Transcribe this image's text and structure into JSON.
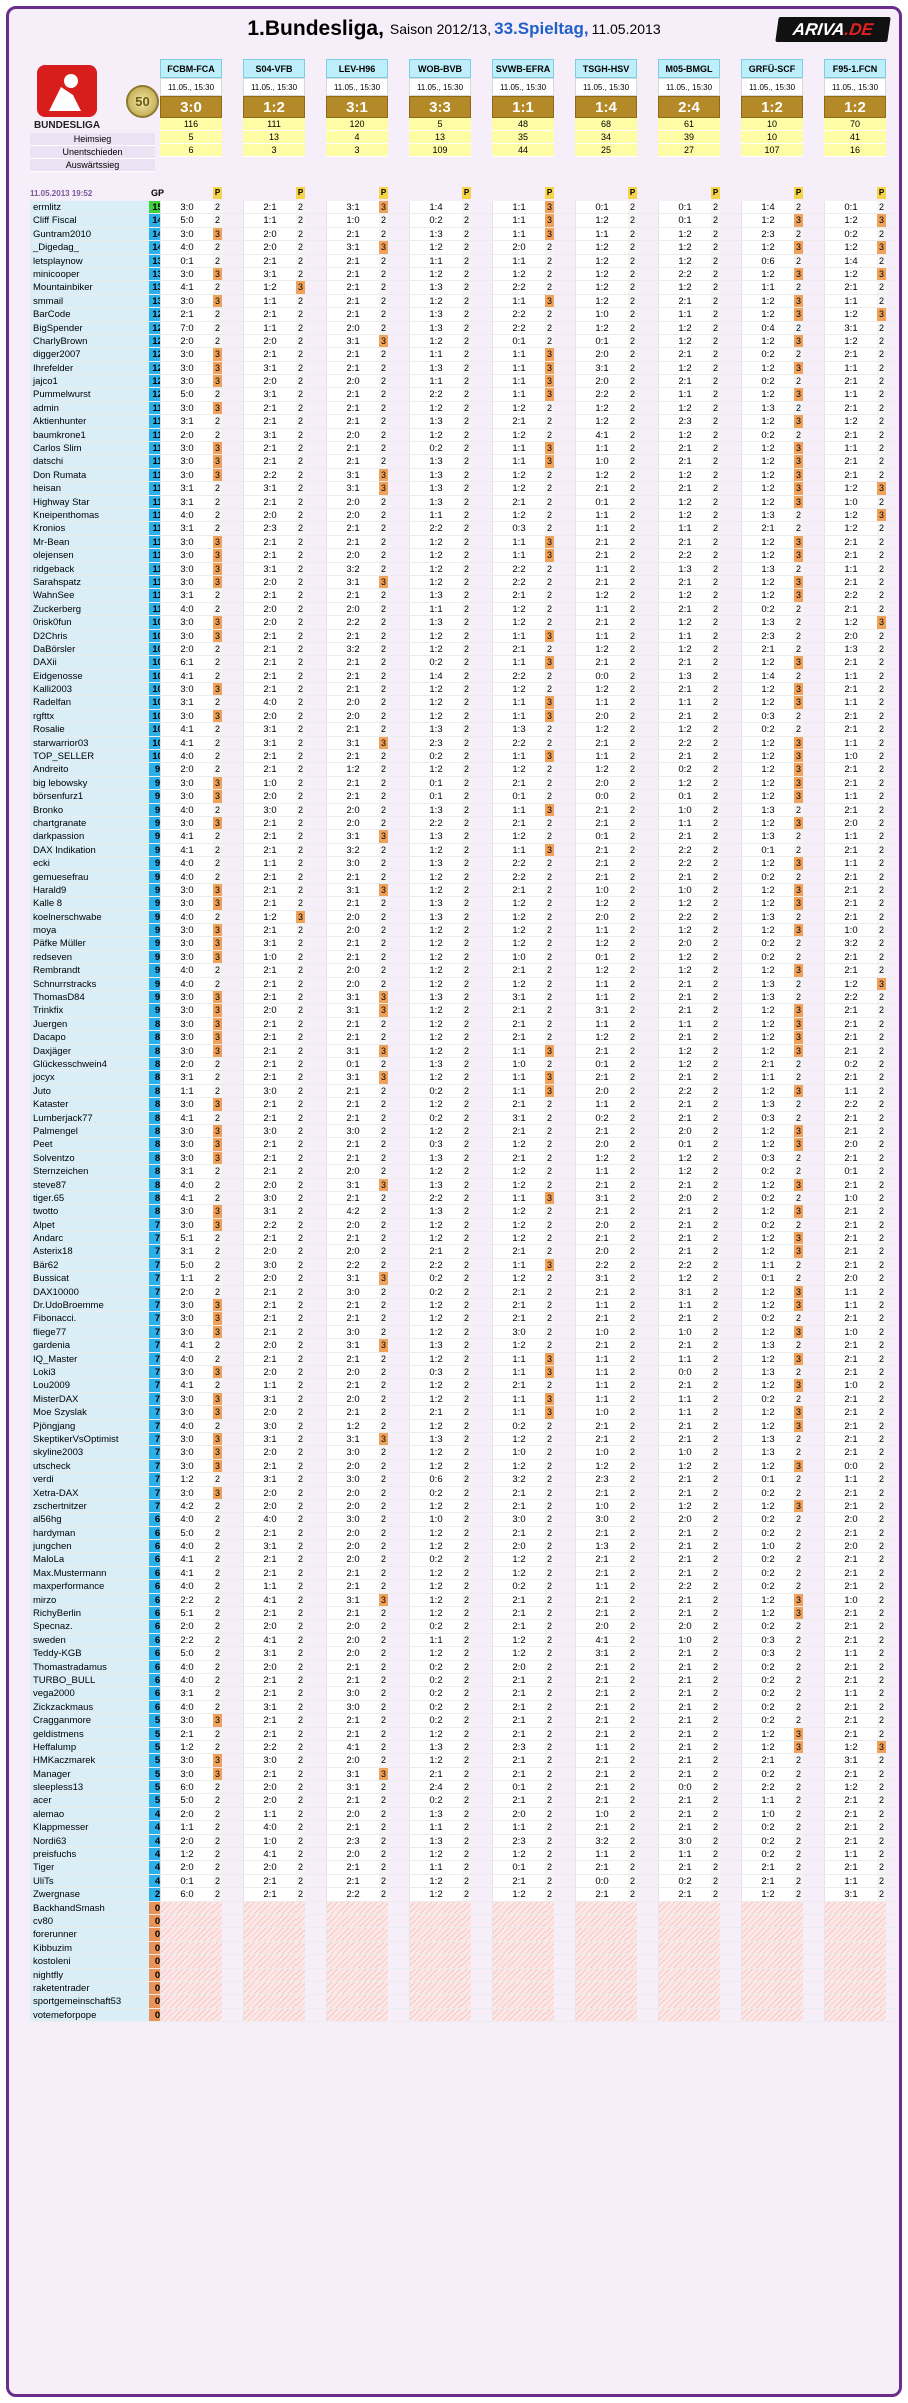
{
  "header": {
    "title": "1.Bundesliga,",
    "season": "Saison 2012/13,",
    "matchday": "33.Spieltag,",
    "date": "11.05.2013",
    "logo_text": "ARIVA",
    "logo_suffix": ".DE",
    "league_logo_label": "BUNDESLIGA",
    "badge": "50"
  },
  "matches": [
    {
      "code": "FCBM-FCA",
      "date": "11.05., 15:30",
      "result": "3:0",
      "home": "116",
      "draw": "5",
      "away": "6"
    },
    {
      "code": "S04-VFB",
      "date": "11.05., 15:30",
      "result": "1:2",
      "home": "111",
      "draw": "13",
      "away": "3"
    },
    {
      "code": "LEV-H96",
      "date": "11.05., 15:30",
      "result": "3:1",
      "home": "120",
      "draw": "4",
      "away": "3"
    },
    {
      "code": "WOB-BVB",
      "date": "11.05., 15:30",
      "result": "3:3",
      "home": "5",
      "draw": "13",
      "away": "109"
    },
    {
      "code": "SVWB-EFRA",
      "date": "11.05., 15:30",
      "result": "1:1",
      "home": "48",
      "draw": "35",
      "away": "44"
    },
    {
      "code": "TSGH-HSV",
      "date": "11.05., 15:30",
      "result": "1:4",
      "home": "68",
      "draw": "34",
      "away": "25"
    },
    {
      "code": "M05-BMGL",
      "date": "11.05., 15:30",
      "result": "2:4",
      "home": "61",
      "draw": "39",
      "away": "27"
    },
    {
      "code": "GRFÜ-SCF",
      "date": "11.05., 15:30",
      "result": "1:2",
      "home": "10",
      "draw": "10",
      "away": "107"
    },
    {
      "code": "F95-1.FCN",
      "date": "11.05., 15:30",
      "result": "1:2",
      "home": "70",
      "draw": "41",
      "away": "16"
    }
  ],
  "labels": {
    "home": "Heimsieg",
    "draw": "Unentschieden",
    "away": "Auswärtssieg",
    "updated": "11.05.2013 19:52",
    "gp": "GP",
    "p": "P"
  },
  "colors": {
    "accent": "#6a2d8c",
    "result_bg": "#b48a28",
    "gp_bg": "#2bb0ea",
    "gp_top": "#3ed23e"
  },
  "players": [
    "ermlitz|15|3:0 2|2:1 2|3:1 3|1:4 2|1:1 3|0:1 2|0:1 2|1:4 2|0:1 2",
    "Cliff Fiscal|14|5:0 2|1:1 2|1:0 2|0:2 2|1:1 3|1:2 2|0:1 2|1:2 3|1:2 3",
    "Guntram2010|14|3:0 3|2:0 2|2:1 2|1:3 2|1:1 3|1:1 2|1:2 2|2:3 2|0:2 2",
    "_Digedag_|14|4:0 2|2:0 2|3:1 3|1:2 2|2:0 2|1:2 2|1:2 2|1:2 3|1:2 3",
    "letsplaynow|13|0:1 2|2:1 2|2:1 2|1:1 2|1:1 2|1:2 2|1:2 2|0:6 2|1:4 2",
    "minicooper|13|3:0 3|3:1 2|2:1 2|1:2 2|1:2 2|1:2 2|2:2 2|1:2 3|1:2 3",
    "Mountainbiker|13|4:1 2|1:2 3|2:1 2|1:3 2|2:2 2|1:2 2|1:2 2|1:1 2|2:1 2",
    "smmail|13|3:0 3|1:1 2|2:1 2|1:2 2|1:1 3|1:2 2|2:1 2|1:2 3|1:1 2",
    "BarCode|12|2:1 2|2:1 2|2:1 2|1:3 2|2:2 2|1:0 2|1:1 2|1:2 3|1:2 3",
    "BigSpender|12|7:0 2|1:1 2|2:0 2|1:3 2|2:2 2|1:2 2|1:2 2|0:4 2|3:1 2",
    "CharlyBrown|12|2:0 2|2:0 2|3:1 3|1:2 2|0:1 2|0:1 2|1:2 2|1:2 3|1:2 2",
    "digger2007|12|3:0 3|2:1 2|2:1 2|1:1 2|1:1 3|2:0 2|2:1 2|0:2 2|2:1 2",
    "Ihrefelder|12|3:0 3|3:1 2|2:1 2|1:3 2|1:1 3|3:1 2|1:2 2|1:2 3|1:1 2",
    "jajco1|12|3:0 3|2:0 2|2:0 2|1:1 2|1:1 3|2:0 2|2:1 2|0:2 2|2:1 2",
    "Pummelwurst|12|5:0 2|3:1 2|2:1 2|2:2 2|1:1 3|2:2 2|1:1 2|1:2 3|1:1 2",
    "admin|11|3:0 3|2:1 2|2:1 2|1:2 2|1:2 2|1:2 2|1:2 2|1:3 2|2:1 2",
    "Aktienhunter|11|3:1 2|2:1 2|2:1 2|1:3 2|2:1 2|1:2 2|2:3 2|1:2 3|1:2 2",
    "baumkrone1|11|2:0 2|3:1 2|2:0 2|1:2 2|1:2 2|4:1 2|1:2 2|0:2 2|2:1 2",
    "Carlos Slim|11|3:0 3|2:1 2|2:1 2|0:2 2|1:1 3|1:1 2|2:1 2|1:2 3|1:1 2",
    "datschi|11|3:0 3|2:1 2|2:1 2|1:3 2|1:1 3|1:0 2|2:1 2|1:2 3|2:1 2",
    "Don Rumata|11|3:0 3|2:2 2|3:1 3|1:3 2|1:2 2|1:2 2|1:2 2|1:2 3|2:1 2",
    "heisan|11|3:1 2|3:1 2|3:1 3|1:3 2|1:2 2|2:1 2|2:1 2|1:2 3|1:2 3",
    "Highway Star|11|3:1 2|2:1 2|2:0 2|1:3 2|2:1 2|0:1 2|1:2 2|1:2 3|1:0 2",
    "Kneipenthomas|11|4:0 2|2:0 2|2:0 2|1:1 2|1:2 2|1:1 2|1:2 2|1:3 2|1:2 3",
    "Kronios|11|3:1 2|2:3 2|2:1 2|2:2 2|0:3 2|1:1 2|1:1 2|2:1 2|1:2 2",
    "Mr-Bean|11|3:0 3|2:1 2|2:1 2|1:2 2|1:1 3|2:1 2|2:1 2|1:2 3|2:1 2",
    "olejensen|11|3:0 3|2:1 2|2:0 2|1:2 2|1:1 3|2:1 2|2:2 2|1:2 3|2:1 2",
    "ridgeback|11|3:0 3|3:1 2|3:2 2|1:2 2|2:2 2|1:1 2|1:3 2|1:3 2|1:1 2",
    "Sarahspatz|11|3:0 3|2:0 2|3:1 3|1:2 2|2:2 2|2:1 2|2:1 2|1:2 3|2:1 2",
    "WahnSee|11|3:1 2|2:1 2|2:1 2|1:3 2|2:1 2|1:2 2|1:2 2|1:2 3|2:2 2",
    "Zuckerberg|11|4:0 2|2:0 2|2:0 2|1:1 2|1:2 2|1:1 2|2:1 2|0:2 2|2:1 2",
    "0risk0fun|10|3:0 3|2:0 2|2:2 2|1:3 2|1:2 2|2:1 2|1:2 2|1:3 2|1:2 3",
    "D2Chris|10|3:0 3|2:1 2|2:1 2|1:2 2|1:1 3|1:1 2|1:1 2|2:3 2|2:0 2",
    "DaBörsler|10|2:0 2|2:1 2|3:2 2|1:2 2|2:1 2|1:2 2|1:2 2|2:1 2|1:3 2",
    "DAXii|10|6:1 2|2:1 2|2:1 2|0:2 2|1:1 3|2:1 2|2:1 2|1:2 3|2:1 2",
    "Eidgenosse|10|4:1 2|2:1 2|2:1 2|1:4 2|2:2 2|0:0 2|1:3 2|1:4 2|1:1 2",
    "Kalli2003|10|3:0 3|2:1 2|2:1 2|1:2 2|1:2 2|1:2 2|2:1 2|1:2 3|2:1 2",
    "Radelfan|10|3:1 2|4:0 2|2:0 2|1:2 2|1:1 3|1:1 2|1:1 2|1:2 3|1:1 2",
    "rgfttx|10|3:0 3|2:0 2|2:0 2|1:2 2|1:1 3|2:0 2|2:1 2|0:3 2|2:1 2",
    "Rosalie|10|4:1 2|3:1 2|2:1 2|1:3 2|1:3 2|1:2 2|1:2 2|0:2 2|2:1 2",
    "starwarrior03|10|4:1 2|3:1 2|3:1 3|2:3 2|2:2 2|2:1 2|2:2 2|1:2 3|1:1 2",
    "TOP_SELLER|10|4:0 2|2:1 2|2:1 2|0:2 2|1:1 3|1:1 2|2:1 2|1:2 3|1:0 2",
    "Andreito|9|2:0 2|2:1 2|1:2 2|1:2 2|1:2 2|1:2 2|0:2 2|1:2 3|2:1 2",
    "big lebowsky|9|3:0 3|1:0 2|2:1 2|0:1 2|2:1 2|2:0 2|1:2 2|1:2 3|2:1 2",
    "börsenfurz1|9|3:0 3|2:0 2|2:1 2|0:1 2|0:1 2|0:0 2|0:1 2|1:2 3|1:1 2",
    "Bronko|9|4:0 2|3:0 2|2:0 2|1:3 2|1:1 3|2:1 2|1:0 2|1:3 2|2:1 2",
    "chartgranate|9|3:0 3|2:1 2|2:0 2|2:2 2|2:1 2|2:1 2|1:1 2|1:2 3|2:0 2",
    "darkpassion|9|4:1 2|2:1 2|3:1 3|1:3 2|1:2 2|0:1 2|2:1 2|1:3 2|1:1 2",
    "DAX Indikation|9|4:1 2|2:1 2|3:2 2|1:2 2|1:1 3|2:1 2|2:2 2|0:1 2|2:1 2",
    "ecki|9|4:0 2|1:1 2|3:0 2|1:3 2|2:2 2|2:1 2|2:2 2|1:2 3|1:1 2",
    "gemuesefrau|9|4:0 2|2:1 2|2:1 2|1:2 2|2:2 2|2:1 2|2:1 2|0:2 2|2:1 2",
    "Harald9|9|3:0 3|2:1 2|3:1 3|1:2 2|2:1 2|1:0 2|1:0 2|1:2 3|2:1 2",
    "Kalle 8|9|3:0 3|2:1 2|2:1 2|1:3 2|1:2 2|1:2 2|1:2 2|1:2 3|2:1 2",
    "koelnerschwabe|9|4:0 2|1:2 3|2:0 2|1:3 2|1:2 2|2:0 2|2:2 2|1:3 2|2:1 2",
    "moya|9|3:0 3|2:1 2|2:0 2|1:2 2|1:2 2|1:1 2|1:2 2|1:2 3|1:0 2",
    "Päfke Müller|9|3:0 3|3:1 2|2:1 2|1:2 2|1:2 2|1:2 2|2:0 2|0:2 2|3:2 2",
    "redseven|9|3:0 3|1:0 2|2:1 2|1:2 2|1:0 2|0:1 2|1:2 2|0:2 2|2:1 2",
    "Rembrandt|9|4:0 2|2:1 2|2:0 2|1:2 2|2:1 2|1:2 2|1:2 2|1:2 3|2:1 2",
    "Schnurrstracks|9|4:0 2|2:1 2|2:0 2|1:2 2|1:2 2|1:1 2|2:1 2|1:3 2|1:2 3",
    "ThomasD84|9|3:0 3|2:1 2|3:1 3|1:3 2|3:1 2|1:1 2|2:1 2|1:3 2|2:2 2",
    "Trinkfix|9|3:0 3|2:0 2|3:1 3|1:2 2|2:1 2|3:1 2|2:1 2|1:2 3|2:1 2",
    "Juergen|8|3:0 3|2:1 2|2:1 2|1:2 2|2:1 2|1:1 2|1:1 2|1:2 3|2:1 2",
    "Dacapo|8|3:0 3|2:1 2|2:1 2|1:2 2|2:1 2|1:2 2|2:1 2|1:2 3|2:1 2",
    "Daxjäger|8|3:0 3|2:1 2|3:1 3|1:2 2|1:1 3|2:1 2|1:2 2|1:2 3|2:1 2",
    "Glückesschwein4|8|2:0 2|2:1 2|0:1 2|1:3 2|1:0 2|0:1 2|1:2 2|2:1 2|0:2 2",
    "jocyx|8|3:1 2|2:1 2|3:1 3|1:2 2|1:1 3|2:1 2|2:1 2|1:1 2|2:1 2",
    "Juto|8|1:1 2|3:0 2|2:1 2|0:2 2|1:1 3|2:0 2|2:2 2|1:2 3|1:1 2",
    "Kataster|8|3:0 3|2:1 2|2:1 2|1:2 2|2:1 2|1:1 2|2:1 2|1:3 2|2:2 2",
    "Lumberjack77|8|4:1 2|2:1 2|2:1 2|0:2 2|3:1 2|0:2 2|2:1 2|0:3 2|2:1 2",
    "Palmengel|8|3:0 3|3:0 2|3:0 2|1:2 2|2:1 2|2:1 2|2:0 2|1:2 3|2:1 2",
    "Peet|8|3:0 3|2:1 2|2:1 2|0:3 2|1:2 2|2:0 2|0:1 2|1:2 3|2:0 2",
    "Solventzo|8|3:0 3|2:1 2|2:1 2|1:3 2|2:1 2|1:2 2|1:2 2|0:3 2|2:1 2",
    "Sternzeichen|8|3:1 2|2:1 2|2:0 2|1:2 2|1:2 2|1:1 2|1:2 2|0:2 2|0:1 2",
    "steve87|8|4:0 2|2:0 2|3:1 3|1:3 2|1:2 2|2:1 2|2:1 2|1:2 3|2:1 2",
    "tiger.65|8|4:1 2|3:0 2|2:1 2|2:2 2|1:1 3|3:1 2|2:0 2|0:2 2|1:0 2",
    "twotto|8|3:0 3|3:1 2|4:2 2|1:3 2|1:2 2|2:1 2|2:1 2|1:2 3|2:1 2",
    "Alpet|7|3:0 3|2:2 2|2:0 2|1:2 2|1:2 2|2:0 2|2:1 2|0:2 2|2:1 2",
    "Andarc|7|5:1 2|2:1 2|2:1 2|1:2 2|1:2 2|2:1 2|2:1 2|1:2 3|2:1 2",
    "Asterix18|7|3:1 2|2:0 2|2:0 2|2:1 2|2:1 2|2:0 2|2:1 2|1:2 3|2:1 2",
    "Bär62|7|5:0 2|3:0 2|2:2 2|2:2 2|1:1 3|2:2 2|2:2 2|1:1 2|2:1 2",
    "Bussicat|7|1:1 2|2:0 2|3:1 3|0:2 2|1:2 2|3:1 2|1:2 2|0:1 2|2:0 2",
    "DAX10000|7|2:0 2|2:1 2|3:0 2|0:2 2|2:1 2|2:1 2|3:1 2|1:2 3|1:1 2",
    "Dr.UdoBroemme|7|3:0 3|2:1 2|2:1 2|1:2 2|2:1 2|1:1 2|1:1 2|1:2 3|1:1 2",
    "Fibonacci.|7|3:0 3|2:1 2|2:1 2|1:2 2|2:1 2|2:1 2|2:1 2|0:2 2|2:1 2",
    "fliege77|7|3:0 3|2:1 2|3:0 2|1:2 2|3:0 2|1:0 2|1:0 2|1:2 3|1:0 2",
    "gardenia|7|4:1 2|2:0 2|3:1 3|1:3 2|1:2 2|2:1 2|2:1 2|1:3 2|2:1 2",
    "IQ_Master|7|4:0 2|2:1 2|2:1 2|1:2 2|1:1 3|1:1 2|1:1 2|1:2 3|2:1 2",
    "Loki3|7|3:0 3|2:0 2|2:0 2|0:3 2|1:1 3|1:1 2|0:0 2|1:3 2|2:1 2",
    "Lou2009|7|4:1 2|1:1 2|2:1 2|1:2 2|2:1 2|1:1 2|2:1 2|1:2 3|1:0 2",
    "MisterDAX|7|3:0 3|3:1 2|2:0 2|1:2 2|1:1 3|1:1 2|1:1 2|0:2 2|2:1 2",
    "Moe Szyslak|7|3:0 3|2:0 2|2:1 2|2:1 2|1:1 3|1:0 2|1:1 2|1:2 3|2:1 2",
    "Pjöngjang|7|4:0 2|3:0 2|1:2 2|1:2 2|0:2 2|2:1 2|2:1 2|1:2 3|2:1 2",
    "SkeptikerVsOptimist|7|3:0 3|3:1 2|3:1 3|1:3 2|1:2 2|2:1 2|2:1 2|1:3 2|2:1 2",
    "skyline2003|7|3:0 3|2:0 2|3:0 2|1:2 2|1:0 2|1:0 2|1:0 2|1:3 2|2:1 2",
    "utscheck|7|3:0 3|2:1 2|2:0 2|1:2 2|1:2 2|1:2 2|1:2 2|1:2 3|0:0 2",
    "verdi|7|1:2 2|3:1 2|3:0 2|0:6 2|3:2 2|2:3 2|2:1 2|0:1 2|1:1 2",
    "Xetra-DAX|7|3:0 3|2:0 2|2:0 2|0:2 2|2:1 2|2:1 2|2:1 2|0:2 2|2:1 2",
    "zschertnitzer|7|4:2 2|2:0 2|2:0 2|1:2 2|2:1 2|1:0 2|1:2 2|1:2 3|2:1 2",
    "al56hg|6|4:0 2|4:0 2|3:0 2|1:0 2|3:0 2|3:0 2|2:0 2|0:2 2|2:0 2",
    "hardyman|6|5:0 2|2:1 2|2:0 2|1:2 2|2:1 2|2:1 2|2:1 2|0:2 2|2:1 2",
    "jungchen|6|4:0 2|3:1 2|2:0 2|1:2 2|2:0 2|1:3 2|2:1 2|1:0 2|2:0 2",
    "MaloLa|6|4:1 2|2:1 2|2:0 2|0:2 2|1:2 2|2:1 2|2:1 2|0:2 2|2:1 2",
    "Max.Mustermann|6|4:1 2|2:1 2|2:1 2|1:2 2|1:2 2|2:1 2|2:1 2|0:2 2|2:1 2",
    "maxperformance|6|4:0 2|1:1 2|2:1 2|1:2 2|0:2 2|1:1 2|2:2 2|0:2 2|2:1 2",
    "mirzo|6|2:2 2|4:1 2|3:1 3|1:2 2|2:1 2|2:1 2|2:1 2|1:2 3|1:0 2",
    "RichyBerlin|6|5:1 2|2:1 2|2:1 2|1:2 2|2:1 2|2:1 2|2:1 2|1:2 3|2:1 2",
    "Specnaz.|6|2:0 2|2:0 2|2:0 2|0:2 2|2:1 2|2:0 2|2:0 2|0:2 2|2:1 2",
    "sweden|6|2:2 2|4:1 2|2:0 2|1:1 2|1:2 2|4:1 2|1:0 2|0:3 2|2:1 2",
    "Teddy-KGB|6|5:0 2|3:1 2|2:0 2|1:2 2|1:2 2|3:1 2|2:1 2|0:3 2|1:1 2",
    "Thomastradamus|6|4:0 2|2:0 2|2:1 2|0:2 2|2:0 2|2:1 2|2:1 2|0:2 2|2:1 2",
    "TURBO_BULL|6|4:0 2|2:1 2|2:1 2|0:2 2|2:1 2|2:1 2|2:1 2|0:2 2|2:1 2",
    "vega2000|6|3:1 2|2:1 2|3:0 2|0:2 2|2:1 2|2:1 2|2:1 2|0:2 2|1:1 2",
    "Zickzackmaus|6|4:0 2|3:1 2|3:0 2|0:2 2|2:1 2|2:1 2|2:1 2|0:2 2|2:1 2",
    "Cragganmore|5|3:0 3|2:1 2|2:1 2|0:2 2|2:1 2|2:1 2|2:1 2|0:2 2|2:1 2",
    "geldistmens|5|2:1 2|2:1 2|2:1 2|1:2 2|2:1 2|2:1 2|2:1 2|1:2 3|2:1 2",
    "Heffalump|5|1:2 2|2:2 2|4:1 2|1:3 2|2:3 2|1:1 2|2:1 2|1:2 3|1:2 3",
    "HMKaczmarek|5|3:0 3|3:0 2|2:0 2|1:2 2|2:1 2|2:1 2|2:1 2|2:1 2|3:1 2",
    "Manager|5|3:0 3|2:1 2|3:1 3|2:1 2|2:1 2|2:1 2|2:1 2|0:2 2|2:1 2",
    "sleepless13|5|6:0 2|2:0 2|3:1 2|2:4 2|0:1 2|2:1 2|0:0 2|2:2 2|1:2 2",
    "acer|5|5:0 2|2:0 2|2:1 2|0:2 2|2:1 2|2:1 2|2:1 2|1:1 2|2:1 2",
    "alemao|4|2:0 2|1:1 2|2:0 2|1:3 2|2:0 2|1:0 2|2:1 2|1:0 2|2:1 2",
    "Klappmesser|4|1:1 2|4:0 2|2:1 2|1:1 2|1:1 2|2:1 2|2:1 2|0:2 2|2:1 2",
    "Nordi63|4|2:0 2|1:0 2|2:3 2|1:3 2|2:3 2|3:2 2|3:0 2|0:2 2|2:1 2",
    "preisfuchs|4|1:2 2|4:1 2|2:0 2|1:2 2|1:2 2|1:1 2|1:1 2|0:2 2|1:1 2",
    "Tiger|4|2:0 2|2:0 2|2:1 2|1:1 2|0:1 2|2:1 2|2:1 2|2:1 2|2:1 2",
    "UliTs|4|0:1 2|2:1 2|2:1 2|1:2 2|2:1 2|0:0 2|0:2 2|2:1 2|1:1 2",
    "Zwergnase|2|6:0 2|2:1 2|2:2 2|1:2 2|1:2 2|2:1 2|2:1 2|1:2 2|3:1 2",
    "BackhandSmash|0|||||||||",
    "cv80|0|||||||||",
    "forerunner|0|||||||||",
    "Kibbuzim|0|||||||||",
    "kostoleni|0|||||||||",
    "nightfly|0|||||||||",
    "raketentrader|0|||||||||",
    "sportgemeinschaft53|0|||||||||",
    "votemeforpope|0|||||||||"
  ]
}
